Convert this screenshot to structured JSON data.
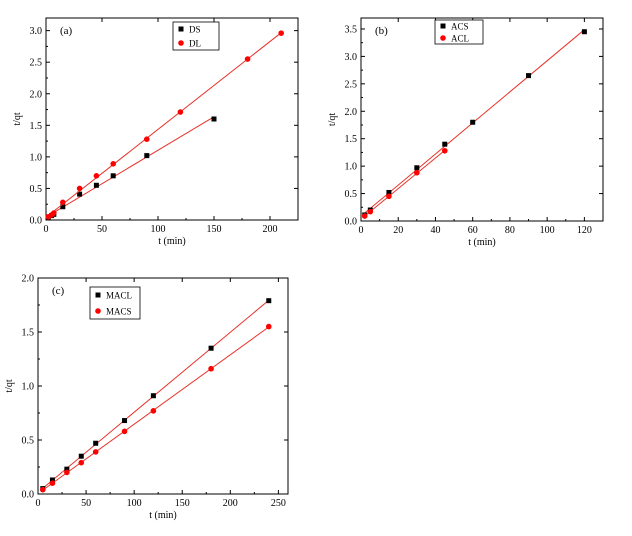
{
  "chart_data": [
    {
      "type": "scatter",
      "panel_label": "(a)",
      "xlabel": "t (min)",
      "ylabel": "t/qt",
      "xlim": [
        0,
        225
      ],
      "ylim": [
        0,
        3.2
      ],
      "xticks": [
        0,
        50,
        100,
        150,
        200
      ],
      "yticks": [
        0.0,
        0.5,
        1.0,
        1.5,
        2.0,
        2.5,
        3.0
      ],
      "legend_position": "top-center",
      "grid": false,
      "series": [
        {
          "name": "DS",
          "marker": "square",
          "color": "#000000",
          "line_color": "#e8322a",
          "x": [
            2,
            5,
            7,
            15,
            30,
            45,
            60,
            90,
            150
          ],
          "y": [
            0.04,
            0.07,
            0.09,
            0.21,
            0.41,
            0.55,
            0.7,
            1.02,
            1.6
          ]
        },
        {
          "name": "DL",
          "marker": "circle",
          "color": "#ff0000",
          "line_color": "#e8322a",
          "x": [
            2,
            5,
            7,
            15,
            30,
            45,
            60,
            90,
            120,
            180,
            210
          ],
          "y": [
            0.05,
            0.08,
            0.11,
            0.28,
            0.5,
            0.7,
            0.89,
            1.28,
            1.71,
            2.55,
            2.96
          ]
        }
      ]
    },
    {
      "type": "scatter",
      "panel_label": "(b)",
      "xlabel": "t (min)",
      "ylabel": "t/qt",
      "xlim": [
        0,
        130
      ],
      "ylim": [
        0,
        3.7
      ],
      "xticks": [
        0,
        20,
        40,
        60,
        80,
        100,
        120
      ],
      "yticks": [
        0.0,
        0.5,
        1.0,
        1.5,
        2.0,
        2.5,
        3.0,
        3.5
      ],
      "legend_position": "top-center",
      "grid": false,
      "series": [
        {
          "name": "ACS",
          "marker": "square",
          "color": "#000000",
          "line_color": "#e8322a",
          "x": [
            2,
            5,
            15,
            30,
            45,
            60,
            90,
            120
          ],
          "y": [
            0.11,
            0.2,
            0.52,
            0.97,
            1.4,
            1.8,
            2.65,
            3.45
          ]
        },
        {
          "name": "ACL",
          "marker": "circle",
          "color": "#ff0000",
          "line_color": "#e8322a",
          "x": [
            2,
            5,
            15,
            30,
            45
          ],
          "y": [
            0.09,
            0.17,
            0.45,
            0.88,
            1.28
          ]
        }
      ]
    },
    {
      "type": "scatter",
      "panel_label": "(c)",
      "xlabel": "t (min)",
      "ylabel": "t/qt",
      "xlim": [
        0,
        260
      ],
      "ylim": [
        0,
        2.0
      ],
      "xticks": [
        0,
        50,
        100,
        150,
        200,
        250
      ],
      "yticks": [
        0.0,
        0.5,
        1.0,
        1.5,
        2.0
      ],
      "legend_position": "top-left",
      "grid": false,
      "series": [
        {
          "name": "MACL",
          "marker": "square",
          "color": "#000000",
          "line_color": "#e8322a",
          "x": [
            5,
            15,
            30,
            45,
            60,
            90,
            120,
            180,
            240
          ],
          "y": [
            0.05,
            0.13,
            0.23,
            0.35,
            0.47,
            0.68,
            0.91,
            1.35,
            1.79
          ]
        },
        {
          "name": "MACS",
          "marker": "circle",
          "color": "#ff0000",
          "line_color": "#e8322a",
          "x": [
            5,
            15,
            30,
            45,
            60,
            90,
            120,
            180,
            240
          ],
          "y": [
            0.04,
            0.1,
            0.2,
            0.29,
            0.39,
            0.58,
            0.77,
            1.16,
            1.55
          ]
        }
      ]
    }
  ]
}
